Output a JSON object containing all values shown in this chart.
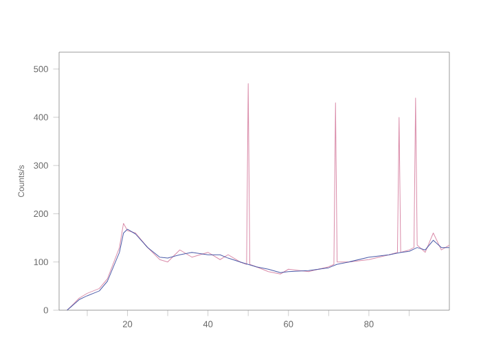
{
  "chart_data": {
    "type": "line",
    "ylabel": "Counts/s",
    "xlim": [
      3,
      100
    ],
    "ylim": [
      0,
      535
    ],
    "xticks": [
      {
        "value": 10,
        "label": null
      },
      20,
      {
        "value": 30,
        "label": null
      },
      40,
      {
        "value": 50,
        "label": null
      },
      60,
      {
        "value": 70,
        "label": null
      },
      80,
      {
        "value": 90,
        "label": null
      }
    ],
    "yticks": [
      0,
      100,
      200,
      300,
      400,
      500
    ],
    "grid": false,
    "marker": "none",
    "line_style": "solid",
    "series": [
      {
        "color": "#d98aa8",
        "x": [
          5,
          8,
          10,
          13,
          15,
          18,
          19,
          20,
          22,
          25,
          28,
          30,
          33,
          36,
          40,
          43,
          45,
          48,
          49.6,
          50,
          50.4,
          52,
          55,
          58,
          60,
          65,
          70,
          71.3,
          71.7,
          72.1,
          75,
          80,
          85,
          87.1,
          87.5,
          87.9,
          90,
          91.2,
          91.6,
          92,
          94,
          96,
          98,
          100
        ],
        "values": [
          0,
          25,
          35,
          45,
          65,
          130,
          180,
          165,
          160,
          130,
          105,
          100,
          125,
          110,
          120,
          105,
          115,
          100,
          95,
          470,
          95,
          90,
          80,
          75,
          85,
          80,
          90,
          95,
          430,
          100,
          100,
          105,
          115,
          120,
          400,
          120,
          125,
          130,
          440,
          135,
          120,
          160,
          125,
          135
        ]
      },
      {
        "color": "#4a5aa8",
        "x": [
          5,
          8,
          10,
          13,
          15,
          18,
          19,
          20,
          22,
          25,
          28,
          30,
          33,
          36,
          40,
          43,
          45,
          48,
          50,
          52,
          55,
          58,
          60,
          65,
          70,
          72,
          75,
          80,
          85,
          88,
          90,
          92,
          94,
          96,
          98,
          100
        ],
        "values": [
          0,
          22,
          30,
          40,
          60,
          120,
          160,
          168,
          158,
          130,
          110,
          108,
          115,
          120,
          115,
          115,
          108,
          100,
          95,
          90,
          85,
          78,
          80,
          82,
          88,
          95,
          100,
          110,
          115,
          120,
          122,
          130,
          125,
          145,
          130,
          130
        ]
      }
    ]
  }
}
